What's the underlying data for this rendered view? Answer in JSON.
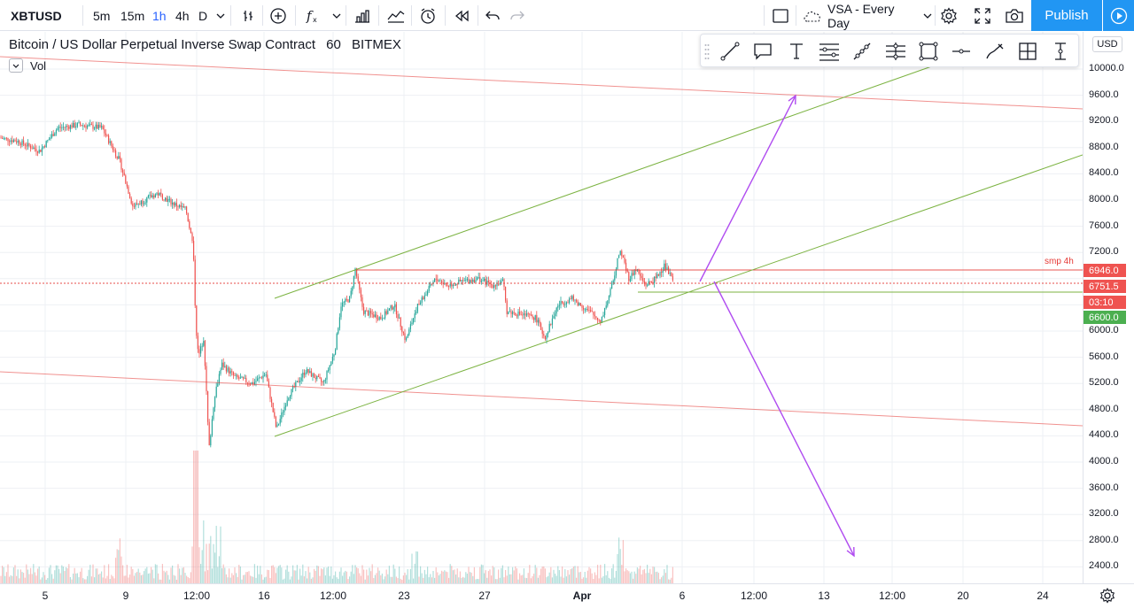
{
  "toolbar": {
    "symbol": "XBTUSD",
    "timeframes": [
      "5m",
      "15m",
      "1h",
      "4h",
      "D"
    ],
    "active_timeframe": "1h",
    "template_name": "VSA - Every Day",
    "publish_label": "Publish"
  },
  "legend": {
    "title": "Bitcoin / US Dollar Perpetual Inverse Swap Contract",
    "interval": "60",
    "exchange": "BITMEX",
    "vol_label": "Vol"
  },
  "price_axis": {
    "currency": "USD",
    "labels": [
      "10000.0",
      "9600.0",
      "9200.0",
      "8800.0",
      "8400.0",
      "8000.0",
      "7600.0",
      "7200.0",
      "6000.0",
      "5600.0",
      "5200.0",
      "4800.0",
      "4400.0",
      "4000.0",
      "3600.0",
      "3200.0",
      "2800.0",
      "2400.0"
    ],
    "smp_label": "smp 4h",
    "tag_resistance": "6946.0",
    "tag_last": "6751.5",
    "tag_countdown": "03:10",
    "tag_support": "6600.0"
  },
  "time_axis": {
    "labels": [
      {
        "text": "5",
        "bold": false
      },
      {
        "text": "9",
        "bold": false
      },
      {
        "text": "12:00",
        "bold": false
      },
      {
        "text": "16",
        "bold": false
      },
      {
        "text": "12:00",
        "bold": false
      },
      {
        "text": "23",
        "bold": false
      },
      {
        "text": "27",
        "bold": false
      },
      {
        "text": "Apr",
        "bold": true
      },
      {
        "text": "6",
        "bold": false
      },
      {
        "text": "12:00",
        "bold": false
      },
      {
        "text": "13",
        "bold": false
      },
      {
        "text": "12:00",
        "bold": false
      },
      {
        "text": "20",
        "bold": false
      },
      {
        "text": "24",
        "bold": false
      }
    ]
  },
  "colors": {
    "up": "#26a69a",
    "down": "#ef5350",
    "resistance": "#e53935",
    "channel": "#7cb342",
    "projection": "#b04cf0",
    "brand": "#2196f3"
  },
  "drawing_tools": [
    "trend-line-icon",
    "callout-icon",
    "text-icon",
    "fib-retracement-icon",
    "path-icon",
    "parallel-channel-icon",
    "rectangle-icon",
    "horizontal-line-icon",
    "brush-icon",
    "grid-icon",
    "price-range-icon"
  ]
}
